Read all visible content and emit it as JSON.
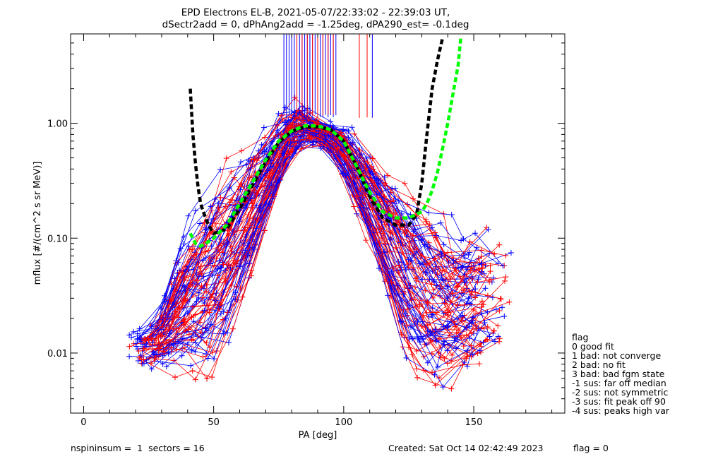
{
  "chart_data": {
    "type": "scatter",
    "title_line1": "EPD Electrons EL-B, 2021-05-07/22:33:02 - 22:39:03 UT,",
    "title_line2": "dSectr2add = 0, dPhAng2add = -1.25deg, dPA290_est=  -0.1deg",
    "xlabel": "PA [deg]",
    "ylabel": "mflux [#/(cm^2 s sr MeV)]",
    "xlim": [
      -5,
      185
    ],
    "ylim": [
      0.003,
      6.0
    ],
    "y_scale": "log",
    "x_ticks": [
      0,
      50,
      100,
      150
    ],
    "x_tick_labels": [
      "0",
      "50",
      "100",
      "150"
    ],
    "y_ticks": [
      0.01,
      0.1,
      1.0
    ],
    "y_tick_labels": [
      "0.01",
      "0.10",
      "1.00"
    ],
    "colors": {
      "blue": "#0000ff",
      "red": "#ff0000",
      "black": "#000000",
      "green": "#00ff00"
    },
    "series": [
      {
        "color": "black",
        "style": "dashed-fit",
        "x": [
          41,
          42,
          43,
          44,
          45,
          46,
          48,
          50,
          55,
          60,
          65,
          70,
          75,
          80,
          85,
          90,
          95,
          100,
          105,
          110,
          115,
          120,
          125,
          128,
          130,
          132,
          134,
          136,
          138
        ],
        "y": [
          2.0,
          0.8,
          0.45,
          0.28,
          0.2,
          0.17,
          0.13,
          0.11,
          0.12,
          0.18,
          0.29,
          0.46,
          0.68,
          0.85,
          0.93,
          0.93,
          0.88,
          0.7,
          0.42,
          0.23,
          0.15,
          0.13,
          0.13,
          0.16,
          0.3,
          0.8,
          2.0,
          3.5,
          5.5
        ]
      },
      {
        "color": "green",
        "style": "dashed-fit",
        "x": [
          41,
          43,
          45,
          47,
          50,
          55,
          60,
          65,
          70,
          75,
          80,
          85,
          90,
          95,
          100,
          105,
          110,
          115,
          120,
          125,
          130,
          132,
          134,
          136,
          138,
          140,
          142,
          144,
          145
        ],
        "y": [
          0.11,
          0.09,
          0.085,
          0.09,
          0.1,
          0.13,
          0.2,
          0.31,
          0.48,
          0.7,
          0.86,
          0.95,
          0.95,
          0.88,
          0.7,
          0.42,
          0.25,
          0.17,
          0.15,
          0.15,
          0.17,
          0.2,
          0.26,
          0.37,
          0.6,
          1.0,
          1.8,
          3.2,
          5.5
        ]
      }
    ],
    "data_points": {
      "envelope_pa": [
        27,
        40,
        50,
        60,
        70,
        80,
        85,
        90,
        95,
        100,
        110,
        120,
        130,
        140,
        150,
        154
      ],
      "envelope_peak": [
        0.018,
        0.13,
        0.35,
        0.55,
        0.8,
        1.6,
        1.4,
        1.1,
        1.0,
        1.0,
        0.6,
        0.32,
        0.2,
        0.13,
        0.12,
        0.1
      ],
      "envelope_low": [
        0.007,
        0.005,
        0.004,
        0.02,
        0.1,
        0.45,
        0.62,
        0.6,
        0.55,
        0.3,
        0.07,
        0.012,
        0.004,
        0.004,
        0.005,
        0.007
      ],
      "pa_range": [
        26,
        155
      ],
      "spikes_blue_x": [
        77,
        78,
        79,
        80,
        81,
        82,
        83,
        84,
        85,
        86,
        87,
        88,
        89,
        90,
        91,
        92,
        93,
        94,
        95,
        96,
        97,
        111
      ],
      "spikes_red_x": [
        82,
        84,
        86,
        88,
        90,
        92,
        94,
        96,
        106,
        109
      ]
    },
    "legend": {
      "title": "flag",
      "entries": [
        " 0 good fit",
        " 1 bad: not converge",
        " 2 bad: no fit",
        " 3 bad: bad fgm state",
        "-1 sus: far off median",
        "-2 sus: not symmetric",
        "-3 sus: fit peak off 90",
        "-4 sus: peaks high var"
      ],
      "placement": "right-bottom"
    },
    "footer": {
      "left": "nspininsum =  1  sectors = 16",
      "created": "Created: Sat Oct 14 02:42:49 2023",
      "flag": "flag = 0"
    },
    "grid": false
  }
}
